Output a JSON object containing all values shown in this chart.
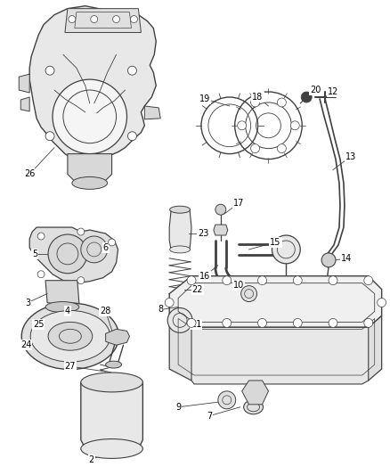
{
  "background_color": "#ffffff",
  "figsize": [
    4.38,
    5.33
  ],
  "dpi": 100,
  "line_color": "#404040",
  "label_fontsize": 7.0,
  "gray_fill": "#d8d8d8",
  "mid_gray": "#b0b0b0"
}
